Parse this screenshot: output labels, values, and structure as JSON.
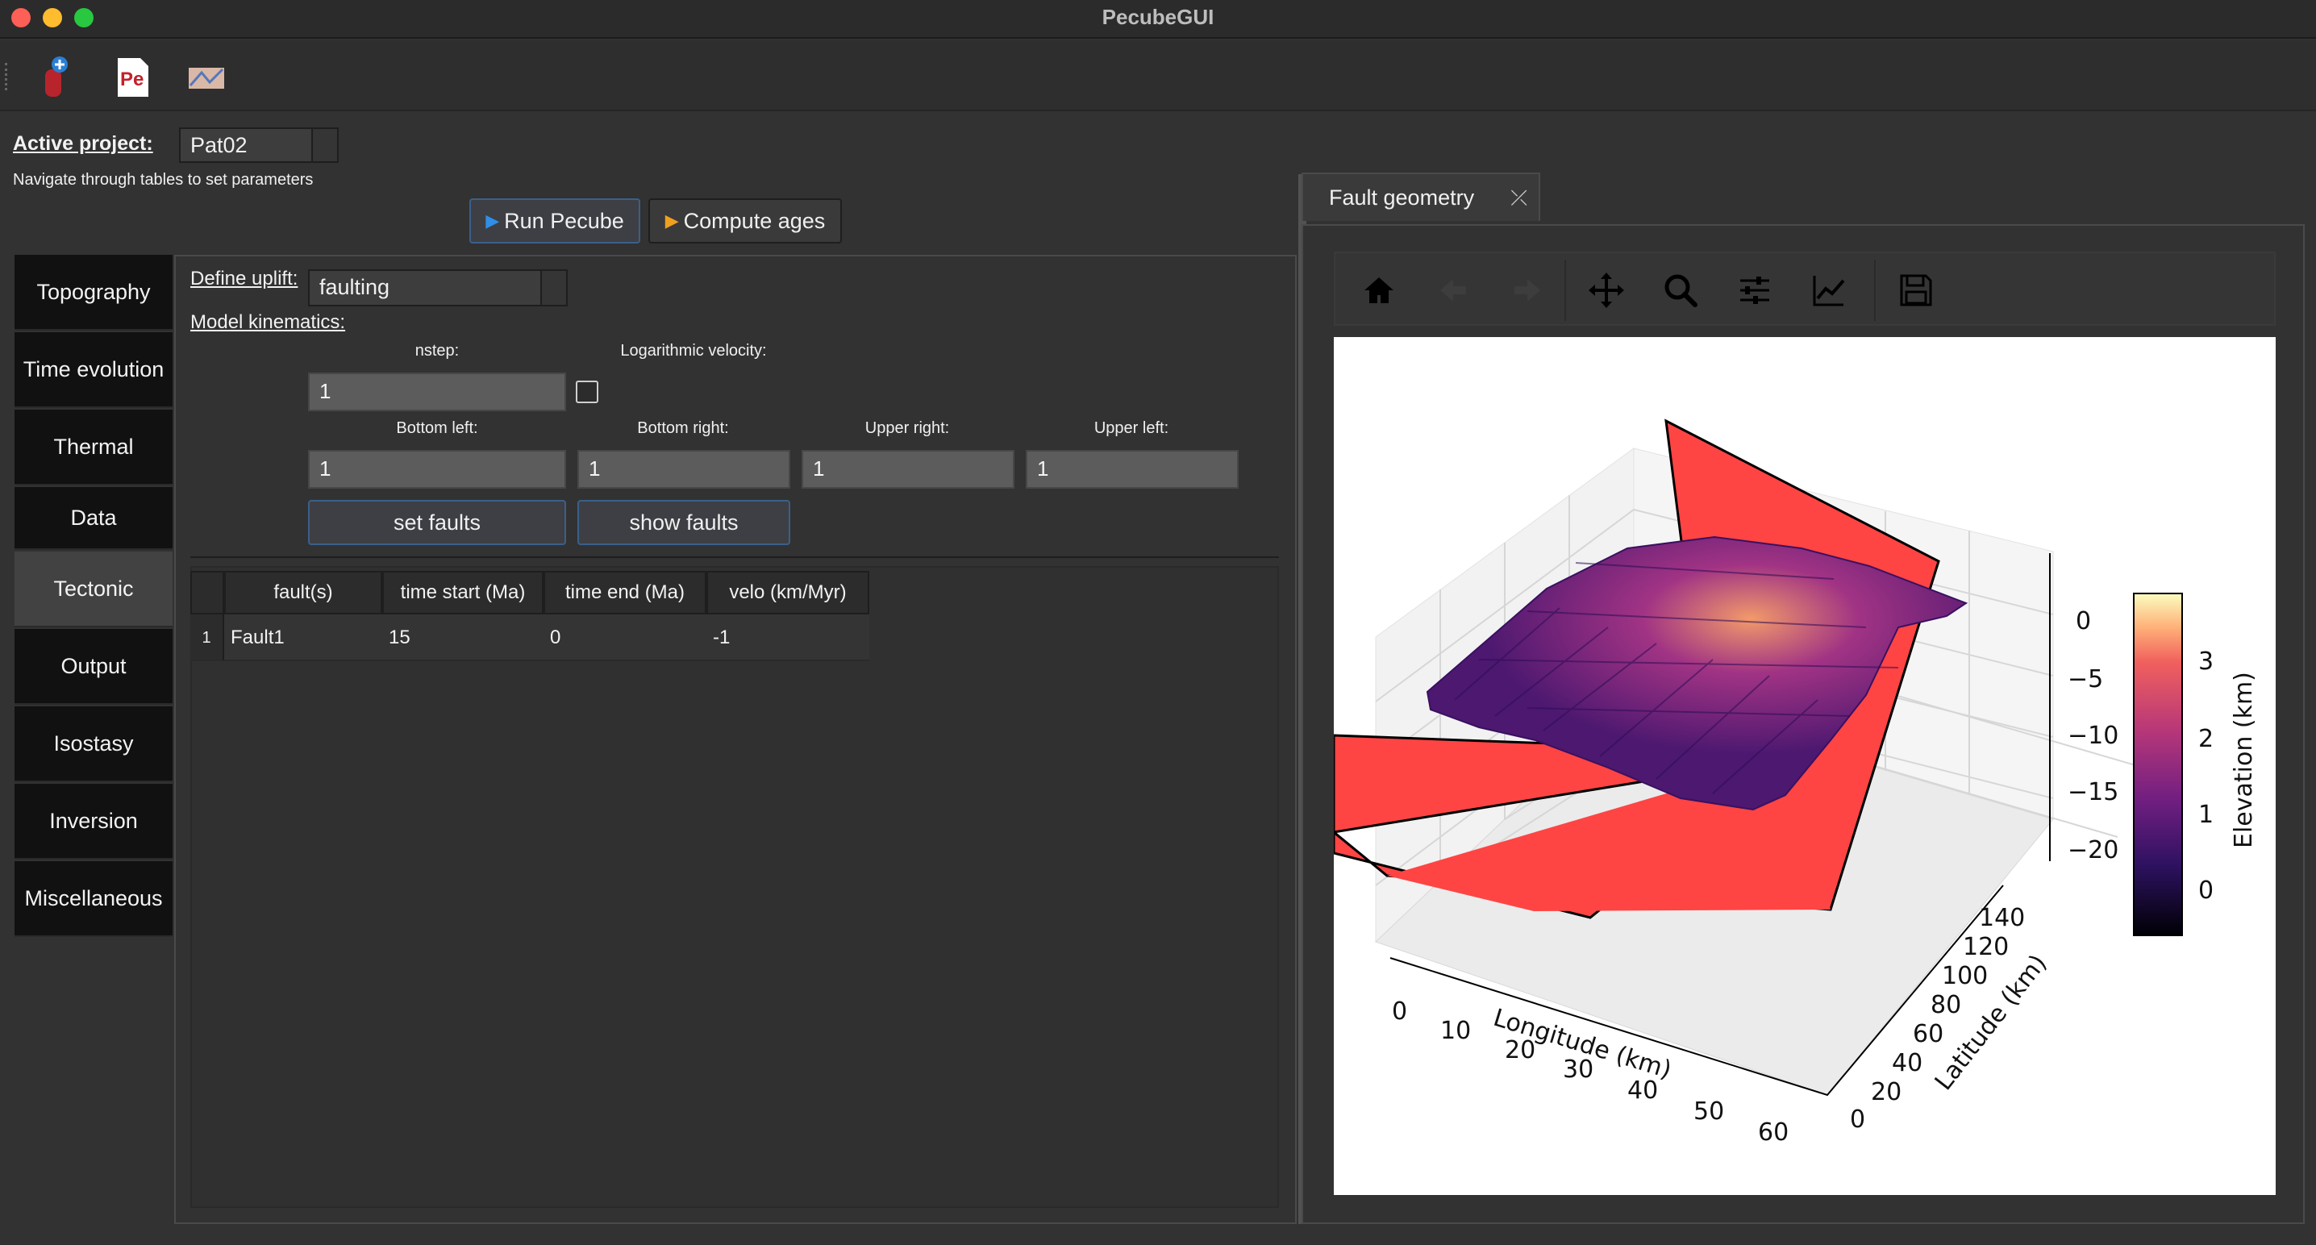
{
  "window": {
    "title": "PecubeGUI"
  },
  "toolbar": {
    "icons": [
      "new-project-icon",
      "pecube-logo-icon",
      "map-icon"
    ]
  },
  "project": {
    "label": "Active project:",
    "value": "Pat02",
    "hint": "Navigate through tables to set parameters"
  },
  "actions": {
    "run": "Run Pecube",
    "compute": "Compute ages"
  },
  "sidebar": {
    "items": [
      {
        "label": "Topography"
      },
      {
        "label": "Time evolution"
      },
      {
        "label": "Thermal"
      },
      {
        "label": "Data"
      },
      {
        "label": "Tectonic"
      },
      {
        "label": "Output"
      },
      {
        "label": "Isostasy"
      },
      {
        "label": "Inversion"
      },
      {
        "label": "Miscellaneous"
      }
    ],
    "active": "Tectonic"
  },
  "tectonic": {
    "uplift_label": "Define uplift:",
    "uplift_value": "faulting",
    "kinematics_label": "Model kinematics:",
    "nstep_label": "nstep:",
    "nstep_value": "1",
    "logvel_label": "Logarithmic velocity:",
    "bottom_left_label": "Bottom left:",
    "bottom_left_value": "1",
    "bottom_right_label": "Bottom right:",
    "bottom_right_value": "1",
    "upper_right_label": "Upper right:",
    "upper_right_value": "1",
    "upper_left_label": "Upper left:",
    "upper_left_value": "1",
    "set_faults": "set faults",
    "show_faults": "show faults"
  },
  "faults_table": {
    "headers": [
      "fault(s)",
      "time start (Ma)",
      "time end (Ma)",
      "velo (km/Myr)"
    ],
    "rows": [
      {
        "index": "1",
        "fault": "Fault1",
        "start": "15",
        "end": "0",
        "velo": "-1"
      }
    ]
  },
  "right_panel": {
    "tab_label": "Fault geometry",
    "nav": [
      "home-icon",
      "back-icon",
      "forward-icon",
      "pan-icon",
      "zoom-icon",
      "configure-icon",
      "edit-axes-icon",
      "save-icon"
    ]
  },
  "plot": {
    "xlabel": "Longitude (km)",
    "ylabel": "Latitude (km)",
    "colorbar_label": "Elevation (km)",
    "x_ticks": [
      "0",
      "10",
      "20",
      "30",
      "40",
      "50",
      "60"
    ],
    "y_ticks": [
      "0",
      "20",
      "40",
      "60",
      "80",
      "100",
      "120",
      "140"
    ],
    "z_ticks": [
      "0",
      "−5",
      "−10",
      "−15",
      "−20"
    ],
    "cbar_ticks": [
      "3",
      "2",
      "1",
      "0"
    ],
    "colors": {
      "fault_plane": "#ff4444",
      "cmap_low": "#000004",
      "cmap_high": "#fcfdbf"
    }
  }
}
